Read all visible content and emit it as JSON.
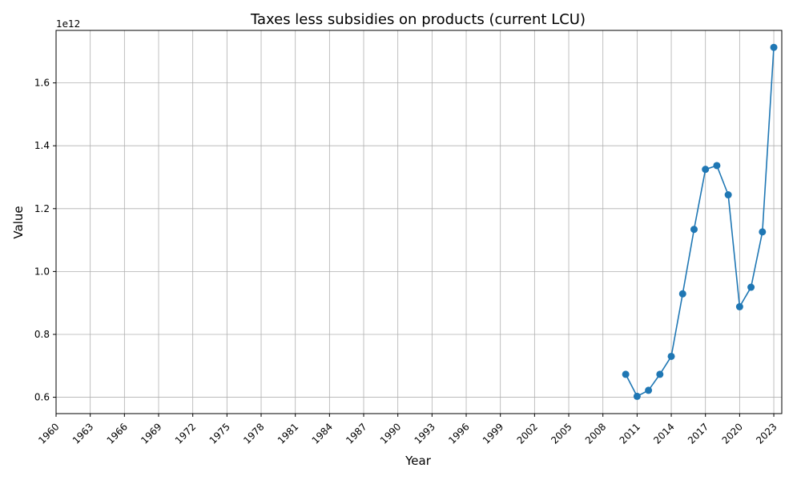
{
  "chart_data": {
    "type": "line",
    "title": "Taxes less subsidies on products (current LCU)",
    "xlabel": "Year",
    "ylabel": "Value",
    "y_offset_label": "1e12",
    "x_ticks": [
      1960,
      1963,
      1966,
      1969,
      1972,
      1975,
      1978,
      1981,
      1984,
      1987,
      1990,
      1993,
      1996,
      1999,
      2002,
      2005,
      2008,
      2011,
      2014,
      2017,
      2020,
      2023
    ],
    "y_ticks": [
      0.6,
      0.8,
      1.0,
      1.2,
      1.4,
      1.6
    ],
    "y_tick_labels": [
      "0.6",
      "0.8",
      "1.0",
      "1.2",
      "1.4",
      "1.6"
    ],
    "xlim": [
      1960,
      2023.7
    ],
    "ylim": [
      0.548,
      1.767
    ],
    "grid": true,
    "series": [
      {
        "color": "#1f77b4",
        "marker": "circle",
        "x": [
          2010,
          2011,
          2012,
          2013,
          2014,
          2015,
          2016,
          2017,
          2018,
          2019,
          2020,
          2021,
          2022,
          2023
        ],
        "y": [
          0.673,
          0.603,
          0.622,
          0.673,
          0.73,
          0.929,
          1.134,
          1.325,
          1.337,
          1.244,
          0.888,
          0.95,
          1.126,
          1.713
        ]
      }
    ]
  }
}
